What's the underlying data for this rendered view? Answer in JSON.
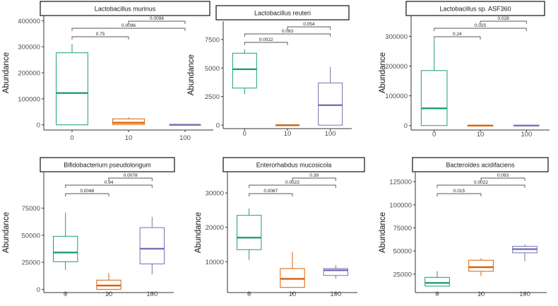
{
  "chart_data": [
    {
      "type": "boxplot",
      "title": "Lactobacillus murinus",
      "ylabel": "Abundance",
      "categories": [
        "0",
        "10",
        "100"
      ],
      "ylim": [
        -20000,
        420000
      ],
      "yticks": [
        0,
        100000,
        200000,
        300000,
        400000
      ],
      "ytick_labels": [
        "0",
        "100000",
        "200000",
        "300000",
        "400000"
      ],
      "boxes": [
        {
          "min": 0,
          "q1": 0,
          "median": 122000,
          "q3": 277000,
          "max": 311000
        },
        {
          "min": 0,
          "q1": 1000,
          "median": 8000,
          "q3": 23000,
          "max": 29000
        },
        {
          "min": 0,
          "q1": 0,
          "median": 0,
          "q3": 0,
          "max": 0
        }
      ],
      "brackets": [
        {
          "from": 0,
          "to": 1,
          "label": "0.75"
        },
        {
          "from": 0,
          "to": 2,
          "label": "0.0096"
        },
        {
          "from": 1,
          "to": 2,
          "label": "0.0096"
        }
      ]
    },
    {
      "type": "boxplot",
      "title": "Lactobacillus reuteri",
      "ylabel": "Abundance",
      "categories": [
        "0",
        "10",
        "100"
      ],
      "ylim": [
        -300,
        9100
      ],
      "yticks": [
        0,
        2500,
        5000,
        7500
      ],
      "ytick_labels": [
        "0",
        "2500",
        "5000",
        "7500"
      ],
      "boxes": [
        {
          "min": 2700,
          "q1": 3250,
          "median": 4900,
          "q3": 6300,
          "max": 6650
        },
        {
          "min": 0,
          "q1": 0,
          "median": 0,
          "q3": 0,
          "max": 0
        },
        {
          "min": 0,
          "q1": 0,
          "median": 1750,
          "q3": 3700,
          "max": 5100
        }
      ],
      "brackets": [
        {
          "from": 0,
          "to": 1,
          "label": "0.0022"
        },
        {
          "from": 0,
          "to": 2,
          "label": "0.093"
        },
        {
          "from": 1,
          "to": 2,
          "label": "0.054"
        }
      ]
    },
    {
      "type": "boxplot",
      "title": "Lactobacillus sp. ASF360",
      "ylabel": "Abundance",
      "categories": [
        "0",
        "10",
        "100"
      ],
      "ylim": [
        -15000,
        370000
      ],
      "yticks": [
        0,
        100000,
        200000,
        300000
      ],
      "ytick_labels": [
        "0",
        "100000",
        "200000",
        "300000"
      ],
      "boxes": [
        {
          "min": 0,
          "q1": 0,
          "median": 58000,
          "q3": 185000,
          "max": 288000
        },
        {
          "min": 0,
          "q1": 0,
          "median": 0,
          "q3": 0,
          "max": 0
        },
        {
          "min": 0,
          "q1": 0,
          "median": 0,
          "q3": 0,
          "max": 0
        }
      ],
      "brackets": [
        {
          "from": 0,
          "to": 1,
          "label": "0.24"
        },
        {
          "from": 0,
          "to": 2,
          "label": "0.025"
        },
        {
          "from": 1,
          "to": 2,
          "label": "0.028"
        }
      ]
    },
    {
      "type": "boxplot",
      "title": "Bifidobacterium pseudolongum",
      "ylabel": "Abundance",
      "categories": [
        "0",
        "10",
        "100"
      ],
      "ylim": [
        -3000,
        108000
      ],
      "yticks": [
        0,
        25000,
        50000,
        75000
      ],
      "ytick_labels": [
        "0",
        "25000",
        "50000",
        "75000"
      ],
      "boxes": [
        {
          "min": 18000,
          "q1": 25500,
          "median": 34000,
          "q3": 49000,
          "max": 71000
        },
        {
          "min": 0,
          "q1": 0,
          "median": 3500,
          "q3": 8500,
          "max": 15000
        },
        {
          "min": 14000,
          "q1": 23500,
          "median": 37500,
          "q3": 57000,
          "max": 67000
        }
      ],
      "brackets": [
        {
          "from": 0,
          "to": 1,
          "label": "0.0048"
        },
        {
          "from": 0,
          "to": 2,
          "label": "0.94"
        },
        {
          "from": 1,
          "to": 2,
          "label": "0.0078"
        }
      ]
    },
    {
      "type": "boxplot",
      "title": "Enterorhabdus mucosicola",
      "ylabel": "Abundance",
      "categories": [
        "0",
        "10",
        "100"
      ],
      "ylim": [
        1000,
        36000
      ],
      "yticks": [
        10000,
        20000,
        30000
      ],
      "ytick_labels": [
        "10000",
        "20000",
        "30000"
      ],
      "boxes": [
        {
          "min": 10500,
          "q1": 13500,
          "median": 17000,
          "q3": 23500,
          "max": 25500
        },
        {
          "min": 2500,
          "q1": 2500,
          "median": 5000,
          "q3": 8000,
          "max": 12800
        },
        {
          "min": 5000,
          "q1": 6000,
          "median": 7500,
          "q3": 8000,
          "max": 9000
        }
      ],
      "brackets": [
        {
          "from": 0,
          "to": 1,
          "label": "0.0087"
        },
        {
          "from": 0,
          "to": 2,
          "label": "0.0022"
        },
        {
          "from": 1,
          "to": 2,
          "label": "0.39"
        }
      ]
    },
    {
      "type": "boxplot",
      "title": "Bacteroides acidifaciens",
      "ylabel": "Abundance",
      "categories": [
        "0",
        "10",
        "100"
      ],
      "ylim": [
        5000,
        135000
      ],
      "yticks": [
        25000,
        50000,
        75000,
        100000,
        125000
      ],
      "ytick_labels": [
        "25000",
        "50000",
        "75000",
        "100000",
        "125000"
      ],
      "boxes": [
        {
          "min": 12000,
          "q1": 12000,
          "median": 15500,
          "q3": 21500,
          "max": 28000
        },
        {
          "min": 23000,
          "q1": 28000,
          "median": 32500,
          "q3": 40000,
          "max": 42000
        },
        {
          "min": 39000,
          "q1": 48000,
          "median": 52000,
          "q3": 55000,
          "max": 57000
        }
      ],
      "brackets": [
        {
          "from": 0,
          "to": 1,
          "label": "0.015"
        },
        {
          "from": 0,
          "to": 2,
          "label": "0.0022"
        },
        {
          "from": 1,
          "to": 2,
          "label": "0.093"
        }
      ]
    }
  ],
  "colors": {
    "group_0": "#1b9e77",
    "group_10": "#d95f02",
    "group_100": "#7570b3",
    "axis": "#333333",
    "text": "#4d4d4d",
    "bracket": "#555555"
  }
}
